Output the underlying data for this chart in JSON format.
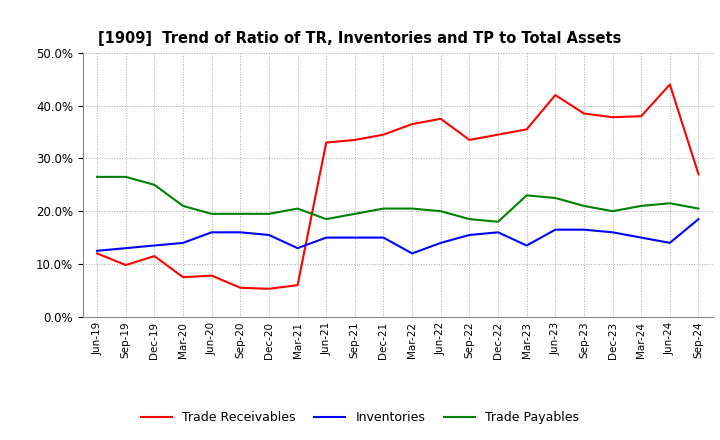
{
  "title": "[1909]  Trend of Ratio of TR, Inventories and TP to Total Assets",
  "labels": [
    "Jun-19",
    "Sep-19",
    "Dec-19",
    "Mar-20",
    "Jun-20",
    "Sep-20",
    "Dec-20",
    "Mar-21",
    "Jun-21",
    "Sep-21",
    "Dec-21",
    "Mar-22",
    "Jun-22",
    "Sep-22",
    "Dec-22",
    "Mar-23",
    "Jun-23",
    "Sep-23",
    "Dec-23",
    "Mar-24",
    "Jun-24",
    "Sep-24"
  ],
  "trade_receivables": [
    12.0,
    9.8,
    11.5,
    7.5,
    7.8,
    5.5,
    5.3,
    6.0,
    33.0,
    33.5,
    34.5,
    36.5,
    37.5,
    33.5,
    34.5,
    35.5,
    42.0,
    38.5,
    37.8,
    38.0,
    44.0,
    27.0
  ],
  "inventories": [
    12.5,
    13.0,
    13.5,
    14.0,
    16.0,
    16.0,
    15.5,
    13.0,
    15.0,
    15.0,
    15.0,
    12.0,
    14.0,
    15.5,
    16.0,
    13.5,
    16.5,
    16.5,
    16.0,
    15.0,
    14.0,
    18.5
  ],
  "trade_payables": [
    26.5,
    26.5,
    25.0,
    21.0,
    19.5,
    19.5,
    19.5,
    20.5,
    18.5,
    19.5,
    20.5,
    20.5,
    20.0,
    18.5,
    18.0,
    23.0,
    22.5,
    21.0,
    20.0,
    21.0,
    21.5,
    20.5
  ],
  "tr_color": "#FF0000",
  "inv_color": "#0000FF",
  "tp_color": "#008000",
  "ylim": [
    0,
    50
  ],
  "yticks": [
    0,
    10,
    20,
    30,
    40,
    50
  ],
  "bg_color": "#FFFFFF",
  "plot_bg_color": "#FFFFFF",
  "grid_color": "#AAAAAA",
  "legend_labels": [
    "Trade Receivables",
    "Inventories",
    "Trade Payables"
  ]
}
